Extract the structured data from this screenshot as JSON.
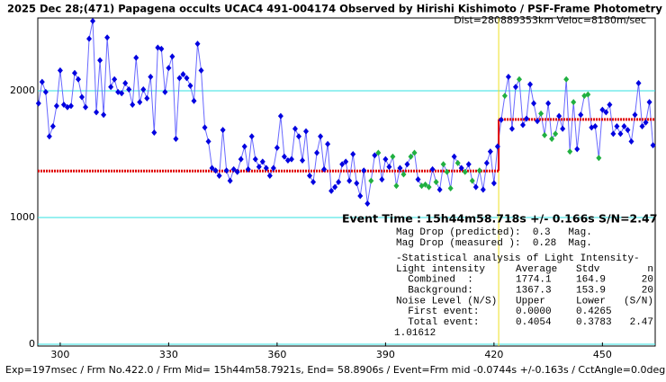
{
  "chart_data": {
    "type": "line",
    "title": "2025 Dec 28;(471) Papagena occults UCAC4 491-004174 Observed by Hirishi Kishimoto / PSF-Frame Photometry /",
    "subtitle": "Dist=280889353km Veloc=8180m/sec",
    "footer": "Exp=197msec / Frm No.422.0 / Frm Mid= 15h44m58.7921s, End= 58.8906s / Event=Frm mid -0.0744s +/-0.163s / CctAngle=0.0deg",
    "event_label": "Event Time : 15h44m58.718s  +/- 0.166s  S/N=2.47",
    "notes": [
      "Mag Drop (predicted):  0.3   Mag.",
      "Mag Drop (measured ):  0.28  Mag.",
      "-Statistical analysis of Light Intensity-"
    ],
    "stats": [
      [
        "Light intensity",
        "Average",
        "Stdv",
        "n"
      ],
      [
        "  Combined  :",
        "1774.1",
        "164.9",
        "20"
      ],
      [
        "  Background:",
        "1367.3",
        "153.9",
        "20"
      ],
      [
        "Noise Level (N/S)",
        "Upper",
        "Lower",
        "(S/N)"
      ],
      [
        "  First event:",
        "0.0000",
        "0.4265"
      ],
      [
        "  Total event:",
        "0.4054",
        "0.3783",
        "2.47"
      ]
    ],
    "corner_value": "1.01612",
    "xlim": [
      293.8,
      464.6
    ],
    "xticks": [
      300,
      330,
      360,
      390,
      420,
      450
    ],
    "ylim": [
      -14,
      2574
    ],
    "yticks": [
      0,
      1000,
      2000
    ],
    "grid": true,
    "event_x": 421.3,
    "fit": {
      "color": "#e00000",
      "before": 1367.3,
      "after": 1774.1
    },
    "x": [
      294,
      295,
      296,
      297,
      298,
      299,
      300,
      301,
      302,
      303,
      304,
      305,
      306,
      307,
      308,
      309,
      310,
      311,
      312,
      313,
      314,
      315,
      316,
      317,
      318,
      319,
      320,
      321,
      322,
      323,
      324,
      325,
      326,
      327,
      328,
      329,
      330,
      331,
      332,
      333,
      334,
      335,
      336,
      337,
      338,
      339,
      340,
      341,
      342,
      343,
      344,
      345,
      346,
      347,
      348,
      349,
      350,
      351,
      352,
      353,
      354,
      355,
      356,
      357,
      358,
      359,
      360,
      361,
      362,
      363,
      364,
      365,
      366,
      367,
      368,
      369,
      370,
      371,
      372,
      373,
      374,
      375,
      376,
      377,
      378,
      379,
      380,
      381,
      382,
      383,
      384,
      385,
      386,
      387,
      388,
      389,
      390,
      391,
      392,
      393,
      394,
      395,
      396,
      397,
      398,
      399,
      400,
      401,
      402,
      403,
      404,
      405,
      406,
      407,
      408,
      409,
      410,
      411,
      412,
      413,
      414,
      415,
      416,
      417,
      418,
      419,
      420,
      421,
      422,
      423,
      424,
      425,
      426,
      427,
      428,
      429,
      430,
      431,
      432,
      433,
      434,
      435,
      436,
      437,
      438,
      439,
      440,
      441,
      442,
      443,
      444,
      445,
      446,
      447,
      448,
      449,
      450,
      451,
      452,
      453,
      454,
      455,
      456,
      457,
      458,
      459,
      460,
      461,
      462,
      463,
      464
    ],
    "series": [
      {
        "color": "#0000e0",
        "line_color": "#6868ff",
        "highlight_color": "#20b040",
        "highlight_x": [
          386,
          388,
          392,
          393,
          395,
          397,
          398,
          400,
          401,
          402,
          404,
          406,
          407,
          408,
          410,
          412,
          414,
          416,
          423,
          427,
          433,
          434,
          436,
          437,
          440,
          441,
          442,
          445,
          446,
          449
        ],
        "values": [
          1900,
          2070,
          1990,
          1640,
          1720,
          1880,
          2160,
          1890,
          1870,
          1880,
          2140,
          2090,
          1950,
          1870,
          2410,
          2550,
          1830,
          2240,
          1810,
          2420,
          2030,
          2090,
          1990,
          1980,
          2060,
          2010,
          1890,
          2260,
          1910,
          2010,
          1940,
          2110,
          1670,
          2340,
          2330,
          1990,
          2180,
          2270,
          1620,
          2100,
          2130,
          2100,
          2040,
          1920,
          2370,
          2160,
          1710,
          1600,
          1390,
          1370,
          1330,
          1690,
          1370,
          1290,
          1380,
          1360,
          1460,
          1560,
          1380,
          1640,
          1460,
          1400,
          1440,
          1390,
          1330,
          1390,
          1550,
          1800,
          1480,
          1450,
          1460,
          1700,
          1640,
          1450,
          1680,
          1330,
          1280,
          1510,
          1640,
          1380,
          1580,
          1210,
          1240,
          1280,
          1420,
          1440,
          1290,
          1500,
          1270,
          1170,
          1370,
          1110,
          1290,
          1490,
          1510,
          1300,
          1460,
          1400,
          1480,
          1250,
          1390,
          1340,
          1420,
          1480,
          1510,
          1300,
          1250,
          1260,
          1240,
          1380,
          1280,
          1220,
          1420,
          1360,
          1230,
          1480,
          1430,
          1390,
          1360,
          1420,
          1290,
          1240,
          1370,
          1220,
          1430,
          1520,
          1270,
          1560,
          1770,
          1960,
          2110,
          1700,
          2030,
          2090,
          1730,
          1780,
          2050,
          1900,
          1760,
          1820,
          1650,
          1900,
          1620,
          1660,
          1800,
          1700,
          2090,
          1520,
          1910,
          1540,
          1810,
          1960,
          1970,
          1710,
          1720,
          1470,
          1850,
          1830,
          1890,
          1660,
          1720,
          1660,
          1720,
          1690,
          1600,
          1810,
          2060,
          1720,
          1750,
          1910,
          1570
        ]
      }
    ]
  }
}
